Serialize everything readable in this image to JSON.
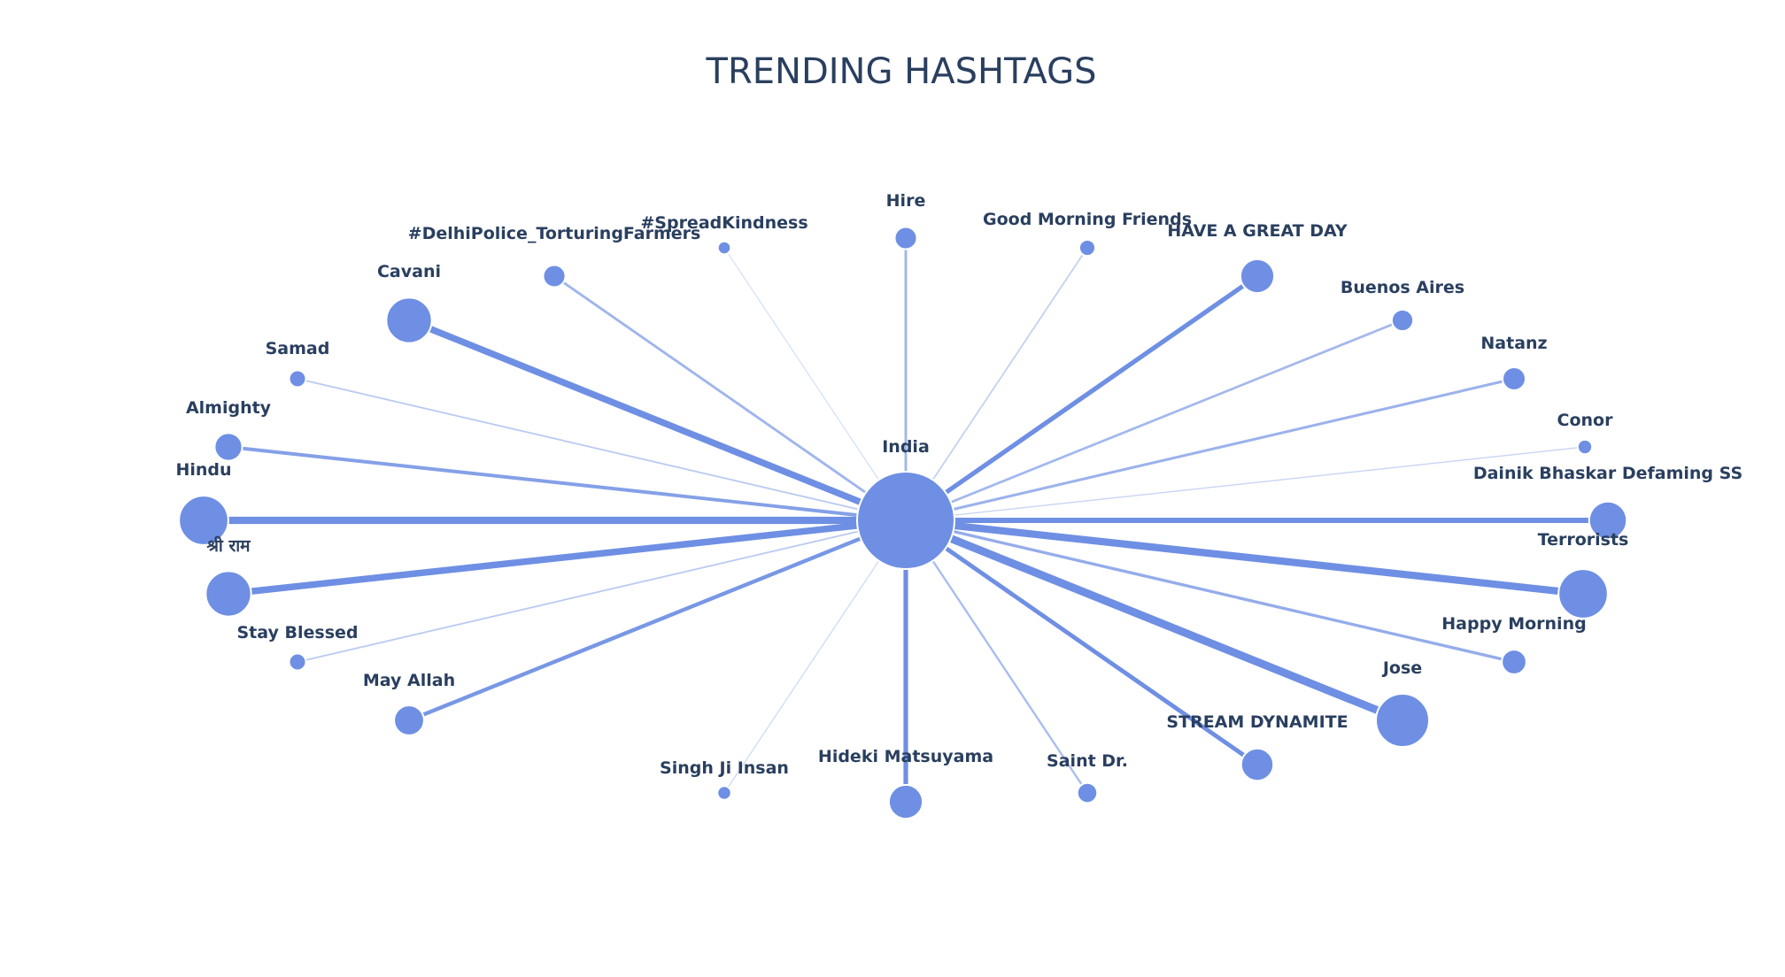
{
  "title": "TRENDING HASHTAGS",
  "colors": {
    "node": "#6e8fe3",
    "node_stroke": "#ffffff",
    "edge": "#6e8fe3",
    "text": "#2a3f5f"
  },
  "chart_data": {
    "type": "network",
    "center": {
      "label": "India"
    },
    "nodes": [
      {
        "label": "Hire",
        "weight": 1.5
      },
      {
        "label": "Good Morning Friends",
        "weight": 0.7
      },
      {
        "label": "HAVE A GREAT DAY",
        "weight": 3.0
      },
      {
        "label": "Buenos Aires",
        "weight": 1.4
      },
      {
        "label": "Natanz",
        "weight": 1.6
      },
      {
        "label": "Conor",
        "weight": 0.5
      },
      {
        "label": "Dainik Bhaskar Defaming SS",
        "weight": 3.5
      },
      {
        "label": "Terrorists",
        "weight": 5.0
      },
      {
        "label": "Happy Morning",
        "weight": 1.8
      },
      {
        "label": "Jose",
        "weight": 5.5
      },
      {
        "label": "STREAM DYNAMITE",
        "weight": 2.8
      },
      {
        "label": "Saint Dr.",
        "weight": 1.2
      },
      {
        "label": "Hideki Matsuyama",
        "weight": 3.0
      },
      {
        "label": "Singh Ji Insan",
        "weight": 0.4
      },
      {
        "label": "May Allah",
        "weight": 2.5
      },
      {
        "label": "Stay Blessed",
        "weight": 0.8
      },
      {
        "label": "श्री राम",
        "weight": 4.5
      },
      {
        "label": "Hindu",
        "weight": 5.0
      },
      {
        "label": "Almighty",
        "weight": 2.2
      },
      {
        "label": "Samad",
        "weight": 0.8
      },
      {
        "label": "Cavani",
        "weight": 4.5
      },
      {
        "label": "#DelhiPolice_TorturingFarmers",
        "weight": 1.5
      },
      {
        "label": "#SpreadKindness",
        "weight": 0.3
      }
    ]
  }
}
